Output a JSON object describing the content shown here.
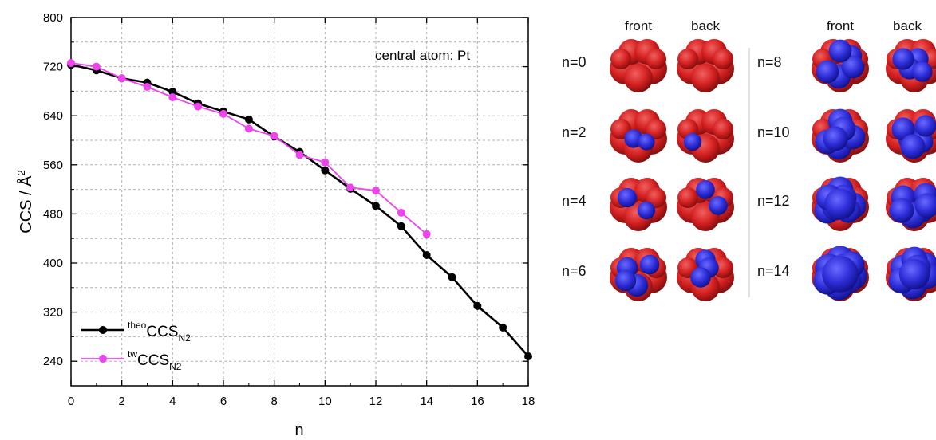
{
  "chart_data": {
    "type": "line",
    "annotation": "central atom: Pt",
    "xlabel": "n",
    "ylabel_main": "CCS  / Å",
    "ylabel_sup": "2",
    "xlim": [
      0,
      18
    ],
    "ylim": [
      200,
      800
    ],
    "xticks": [
      0,
      2,
      4,
      6,
      8,
      10,
      12,
      14,
      16,
      18
    ],
    "yticks": [
      240,
      320,
      400,
      480,
      560,
      640,
      720,
      800
    ],
    "grid": true,
    "legend_position": "bottom-left",
    "series": [
      {
        "legend_sup": "theo",
        "legend_main": "CCS",
        "legend_sub": "N2",
        "color": "#000000",
        "x": [
          0,
          1,
          2,
          3,
          4,
          5,
          6,
          7,
          8,
          9,
          10,
          11,
          12,
          13,
          14,
          15,
          16,
          17,
          18
        ],
        "y": [
          723,
          714,
          701,
          694,
          679,
          660,
          647,
          634,
          606,
          581,
          551,
          521,
          493,
          460,
          413,
          377,
          330,
          295,
          248
        ]
      },
      {
        "legend_sup": "tw",
        "legend_main": "CCS",
        "legend_sub": "N2",
        "color": "#ee44ee",
        "x": [
          0,
          1,
          2,
          3,
          4,
          5,
          6,
          7,
          8,
          9,
          10,
          11,
          12,
          13,
          14
        ],
        "y": [
          726,
          720,
          701,
          687,
          670,
          655,
          643,
          619,
          607,
          576,
          564,
          523,
          518,
          482,
          447
        ]
      }
    ]
  },
  "structure_panel": {
    "headers": [
      "front",
      "back",
      "front",
      "back"
    ],
    "left_rows": [
      {
        "label": "n=0",
        "n": 0
      },
      {
        "label": "n=2",
        "n": 2
      },
      {
        "label": "n=4",
        "n": 4
      },
      {
        "label": "n=6",
        "n": 6
      }
    ],
    "right_rows": [
      {
        "label": "n=8",
        "n": 8
      },
      {
        "label": "n=10",
        "n": 10
      },
      {
        "label": "n=12",
        "n": 12
      },
      {
        "label": "n=14",
        "n": 14
      }
    ],
    "colors": {
      "core": "#d42020",
      "core_dark": "#8a0e0e",
      "ligand": "#2d2dd8",
      "ligand_dark": "#10108a"
    }
  }
}
